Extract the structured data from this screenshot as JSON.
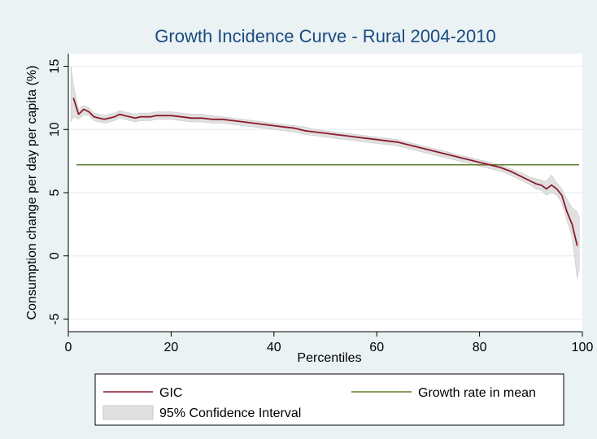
{
  "chart_data": {
    "type": "line",
    "title": "Growth Incidence Curve - Rural 2004-2010",
    "xlabel": "Percentiles",
    "ylabel": "Consumption change per day per capita (%)",
    "xlim": [
      0,
      100
    ],
    "ylim": [
      -6,
      16
    ],
    "xticks": [
      "0",
      "20",
      "40",
      "60",
      "80",
      "100"
    ],
    "yticks": [
      "-5",
      "0",
      "5",
      "10",
      "15"
    ],
    "grid": "horizontal",
    "legend_position": "bottom",
    "colors": {
      "gic": "#8b1a2b",
      "mean": "#5f7f2e",
      "ci": "#e0e0e0",
      "ci_edge": "#c8c8c8"
    },
    "series": [
      {
        "name": "GIC",
        "x": [
          1,
          2,
          3,
          4,
          5,
          6,
          7,
          8,
          9,
          10,
          11,
          12,
          13,
          14,
          15,
          16,
          17,
          18,
          19,
          20,
          22,
          24,
          26,
          28,
          30,
          32,
          34,
          36,
          38,
          40,
          42,
          44,
          46,
          48,
          50,
          52,
          54,
          56,
          58,
          60,
          62,
          64,
          66,
          68,
          70,
          72,
          74,
          76,
          78,
          80,
          82,
          84,
          86,
          88,
          90,
          91,
          92,
          93,
          94,
          95,
          96,
          97,
          98,
          99
        ],
        "values": [
          12.5,
          11.2,
          11.6,
          11.4,
          11.0,
          10.9,
          10.8,
          10.9,
          11.0,
          11.2,
          11.1,
          11.0,
          10.9,
          11.0,
          11.0,
          11.0,
          11.1,
          11.1,
          11.1,
          11.1,
          11.0,
          10.9,
          10.9,
          10.8,
          10.8,
          10.7,
          10.6,
          10.5,
          10.4,
          10.3,
          10.2,
          10.1,
          9.9,
          9.8,
          9.7,
          9.6,
          9.5,
          9.4,
          9.3,
          9.2,
          9.1,
          9.0,
          8.8,
          8.6,
          8.4,
          8.2,
          8.0,
          7.8,
          7.6,
          7.4,
          7.2,
          7.0,
          6.7,
          6.3,
          5.9,
          5.7,
          5.6,
          5.3,
          5.6,
          5.3,
          4.8,
          3.5,
          2.5,
          0.8
        ]
      },
      {
        "name": "Growth rate in mean",
        "x": [
          0,
          100
        ],
        "values": [
          7.2,
          7.2
        ]
      }
    ],
    "ci": {
      "name": "95% Confidence Interval",
      "x": [
        0.5,
        1,
        2,
        3,
        4,
        5,
        6,
        7,
        8,
        9,
        10,
        11,
        12,
        13,
        14,
        15,
        16,
        17,
        18,
        19,
        20,
        22,
        24,
        26,
        28,
        30,
        32,
        34,
        36,
        38,
        40,
        42,
        44,
        46,
        48,
        50,
        52,
        54,
        56,
        58,
        60,
        62,
        64,
        66,
        68,
        70,
        72,
        74,
        76,
        78,
        80,
        82,
        84,
        86,
        88,
        90,
        91,
        92,
        93,
        94,
        95,
        96,
        97,
        98,
        99,
        99.4
      ],
      "upper": [
        15.0,
        13.5,
        11.6,
        11.9,
        11.7,
        11.3,
        11.2,
        11.1,
        11.2,
        11.3,
        11.5,
        11.4,
        11.3,
        11.2,
        11.3,
        11.3,
        11.3,
        11.4,
        11.4,
        11.4,
        11.4,
        11.3,
        11.2,
        11.2,
        11.1,
        11.0,
        10.9,
        10.8,
        10.7,
        10.6,
        10.5,
        10.4,
        10.3,
        10.2,
        10.0,
        9.9,
        9.8,
        9.7,
        9.6,
        9.5,
        9.4,
        9.3,
        9.2,
        9.0,
        8.8,
        8.6,
        8.4,
        8.2,
        8.0,
        7.8,
        7.6,
        7.4,
        7.2,
        6.9,
        6.6,
        6.2,
        6.1,
        6.0,
        5.9,
        6.4,
        5.8,
        5.3,
        4.5,
        3.8,
        3.5,
        3.0
      ],
      "lower": [
        10.6,
        11.0,
        10.8,
        11.2,
        11.1,
        10.7,
        10.6,
        10.5,
        10.6,
        10.7,
        10.9,
        10.8,
        10.7,
        10.6,
        10.7,
        10.7,
        10.7,
        10.8,
        10.8,
        10.8,
        10.8,
        10.7,
        10.6,
        10.6,
        10.5,
        10.5,
        10.4,
        10.3,
        10.2,
        10.1,
        10.0,
        9.9,
        9.8,
        9.6,
        9.5,
        9.4,
        9.3,
        9.2,
        9.1,
        9.0,
        8.9,
        8.8,
        8.7,
        8.5,
        8.3,
        8.1,
        7.9,
        7.7,
        7.5,
        7.3,
        7.1,
        6.9,
        6.7,
        6.4,
        6.0,
        5.6,
        5.3,
        5.2,
        4.8,
        5.0,
        4.8,
        4.2,
        2.8,
        1.5,
        -1.8,
        -1.0
      ]
    },
    "legend": {
      "gic": "GIC",
      "mean": "Growth rate in mean",
      "ci": "95% Confidence Interval"
    }
  }
}
